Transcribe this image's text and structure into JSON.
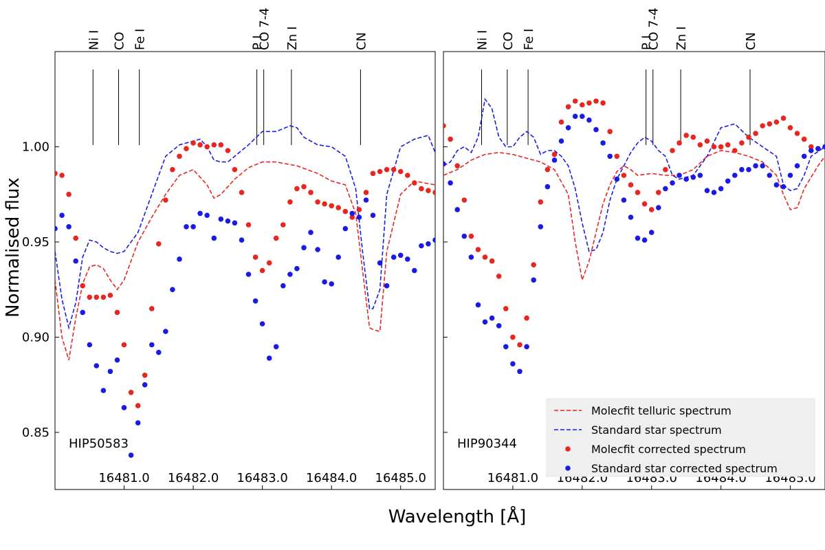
{
  "figure": {
    "xlabel": "Wavelength [Å]",
    "ylabel": "Normalised flux"
  },
  "legend": {
    "placement": "lower-right of right panel",
    "entries": [
      {
        "label": "Molecfit telluric spectrum",
        "style": "dashed-line",
        "color": "#e8251f"
      },
      {
        "label": "Standard star spectrum",
        "style": "dashed-line",
        "color": "#1a1ae6"
      },
      {
        "label": "Molecfit corrected spectrum",
        "style": "dot",
        "color": "#e8251f"
      },
      {
        "label": "Standard star corrected spectrum",
        "style": "dot",
        "color": "#1a1ae6"
      }
    ]
  },
  "colors": {
    "red": "#e8251f",
    "blue": "#1a1ae6",
    "legend_bg": "#efefef"
  },
  "chart_data": [
    {
      "type": "line",
      "label": "HIP50583",
      "xlim": [
        16480.0,
        16485.5
      ],
      "ylim": [
        0.82,
        1.05
      ],
      "xticks": [
        16481.0,
        16482.0,
        16483.0,
        16484.0,
        16485.0
      ],
      "xtick_labels": [
        "16481.0",
        "16482.0",
        "16483.0",
        "16484.0",
        "16485.0"
      ],
      "yticks": [
        0.85,
        0.9,
        0.95,
        1.0
      ],
      "ytick_labels": [
        "0.85",
        "0.90",
        "0.95",
        "1.00"
      ],
      "line_ids": [
        {
          "label": "Ni I",
          "x": 16480.55
        },
        {
          "label": "CO",
          "x": 16480.92
        },
        {
          "label": "Fe I",
          "x": 16481.22
        },
        {
          "label": "P I",
          "x": 16482.92
        },
        {
          "label": "CO 7-4",
          "x": 16483.02
        },
        {
          "label": "Zn I",
          "x": 16483.42
        },
        {
          "label": "CN",
          "x": 16484.42
        }
      ],
      "series": [
        {
          "name": "Molecfit telluric spectrum",
          "kind": "line",
          "x": [
            16480.0,
            16480.1,
            16480.2,
            16480.3,
            16480.4,
            16480.5,
            16480.6,
            16480.7,
            16480.8,
            16480.9,
            16481.0,
            16481.2,
            16481.4,
            16481.6,
            16481.8,
            16482.0,
            16482.2,
            16482.3,
            16482.4,
            16482.6,
            16482.8,
            16483.0,
            16483.2,
            16483.5,
            16483.8,
            16484.0,
            16484.2,
            16484.35,
            16484.45,
            16484.55,
            16484.6,
            16484.7,
            16484.8,
            16485.0,
            16485.2,
            16485.5
          ],
          "y": [
            0.93,
            0.9,
            0.888,
            0.91,
            0.928,
            0.937,
            0.938,
            0.936,
            0.93,
            0.925,
            0.93,
            0.95,
            0.963,
            0.975,
            0.985,
            0.988,
            0.98,
            0.973,
            0.975,
            0.983,
            0.989,
            0.992,
            0.992,
            0.99,
            0.986,
            0.982,
            0.98,
            0.965,
            0.935,
            0.905,
            0.904,
            0.903,
            0.945,
            0.975,
            0.982,
            0.98
          ]
        },
        {
          "name": "Standard star spectrum",
          "kind": "line",
          "x": [
            16480.0,
            16480.1,
            16480.2,
            16480.3,
            16480.4,
            16480.5,
            16480.6,
            16480.7,
            16480.8,
            16480.9,
            16481.0,
            16481.2,
            16481.4,
            16481.6,
            16481.8,
            16482.0,
            16482.1,
            16482.2,
            16482.3,
            16482.4,
            16482.5,
            16482.6,
            16482.8,
            16483.0,
            16483.2,
            16483.4,
            16483.5,
            16483.6,
            16483.8,
            16484.0,
            16484.2,
            16484.35,
            16484.45,
            16484.55,
            16484.6,
            16484.7,
            16484.8,
            16485.0,
            16485.2,
            16485.4,
            16485.5
          ],
          "y": [
            0.945,
            0.92,
            0.905,
            0.918,
            0.942,
            0.951,
            0.95,
            0.947,
            0.945,
            0.944,
            0.945,
            0.955,
            0.975,
            0.995,
            1.001,
            1.003,
            1.004,
            1.0,
            0.993,
            0.992,
            0.992,
            0.995,
            1.001,
            1.008,
            1.008,
            1.011,
            1.01,
            1.005,
            1.001,
            1.0,
            0.995,
            0.978,
            0.945,
            0.915,
            0.915,
            0.925,
            0.975,
            1.0,
            1.004,
            1.006,
            0.997
          ]
        },
        {
          "name": "Molecfit corrected spectrum",
          "kind": "scatter",
          "x": [
            16480.0,
            16480.1,
            16480.2,
            16480.3,
            16480.4,
            16480.5,
            16480.6,
            16480.7,
            16480.8,
            16480.9,
            16481.0,
            16481.1,
            16481.2,
            16481.3,
            16481.4,
            16481.5,
            16481.6,
            16481.7,
            16481.8,
            16481.9,
            16482.0,
            16482.1,
            16482.2,
            16482.3,
            16482.4,
            16482.5,
            16482.6,
            16482.7,
            16482.8,
            16482.9,
            16483.0,
            16483.1,
            16483.2,
            16483.3,
            16483.4,
            16483.5,
            16483.6,
            16483.7,
            16483.8,
            16483.9,
            16484.0,
            16484.1,
            16484.2,
            16484.3,
            16484.4,
            16484.5,
            16484.6,
            16484.7,
            16484.8,
            16484.9,
            16485.0,
            16485.1,
            16485.2,
            16485.3,
            16485.4,
            16485.5
          ],
          "y": [
            0.986,
            0.985,
            0.975,
            0.952,
            0.927,
            0.921,
            0.921,
            0.921,
            0.922,
            0.913,
            0.896,
            0.871,
            0.864,
            0.88,
            0.915,
            0.949,
            0.972,
            0.988,
            0.995,
            0.999,
            1.002,
            1.001,
            1.0,
            1.001,
            1.001,
            0.998,
            0.988,
            0.976,
            0.959,
            0.942,
            0.935,
            0.939,
            0.952,
            0.959,
            0.971,
            0.978,
            0.979,
            0.976,
            0.971,
            0.97,
            0.969,
            0.968,
            0.966,
            0.963,
            0.967,
            0.976,
            0.986,
            0.987,
            0.988,
            0.988,
            0.987,
            0.985,
            0.981,
            0.978,
            0.977,
            0.976
          ]
        },
        {
          "name": "Standard star corrected spectrum",
          "kind": "scatter",
          "x": [
            16480.0,
            16480.1,
            16480.2,
            16480.3,
            16480.4,
            16480.5,
            16480.6,
            16480.7,
            16480.8,
            16480.9,
            16481.0,
            16481.1,
            16481.2,
            16481.3,
            16481.4,
            16481.5,
            16481.6,
            16481.7,
            16481.8,
            16481.9,
            16482.0,
            16482.1,
            16482.2,
            16482.3,
            16482.4,
            16482.5,
            16482.6,
            16482.7,
            16482.8,
            16482.9,
            16483.0,
            16483.1,
            16483.2,
            16483.3,
            16483.4,
            16483.5,
            16483.6,
            16483.7,
            16483.8,
            16483.9,
            16484.0,
            16484.1,
            16484.2,
            16484.3,
            16484.4,
            16484.5,
            16484.6,
            16484.7,
            16484.8,
            16484.9,
            16485.0,
            16485.1,
            16485.2,
            16485.3,
            16485.4,
            16485.5
          ],
          "y": [
            0.957,
            0.964,
            0.958,
            0.94,
            0.913,
            0.896,
            0.885,
            0.872,
            0.882,
            0.888,
            0.863,
            0.838,
            0.855,
            0.875,
            0.896,
            0.892,
            0.903,
            0.925,
            0.941,
            0.958,
            0.958,
            0.965,
            0.964,
            0.952,
            0.962,
            0.961,
            0.96,
            0.951,
            0.933,
            0.919,
            0.907,
            0.889,
            0.895,
            0.927,
            0.933,
            0.936,
            0.947,
            0.955,
            0.946,
            0.929,
            0.928,
            0.942,
            0.957,
            0.965,
            0.963,
            0.972,
            0.964,
            0.939,
            0.927,
            0.942,
            0.943,
            0.941,
            0.935,
            0.948,
            0.949,
            0.951
          ]
        }
      ]
    },
    {
      "type": "line",
      "label": "HIP90344",
      "xlim": [
        16480.0,
        16485.5
      ],
      "ylim": [
        0.82,
        1.05
      ],
      "xticks": [
        16481.0,
        16482.0,
        16483.0,
        16484.0,
        16485.0
      ],
      "xtick_labels": [
        "16481.0",
        "16482.0",
        "16483.0",
        "16484.0",
        "16485.0"
      ],
      "yticks": [
        0.85,
        0.9,
        0.95,
        1.0
      ],
      "line_ids": [
        {
          "label": "Ni I",
          "x": 16480.55
        },
        {
          "label": "CO",
          "x": 16480.92
        },
        {
          "label": "Fe I",
          "x": 16481.22
        },
        {
          "label": "P I",
          "x": 16482.92
        },
        {
          "label": "CO 7-4",
          "x": 16483.02
        },
        {
          "label": "Zn I",
          "x": 16483.42
        },
        {
          "label": "CN",
          "x": 16484.42
        }
      ],
      "series": [
        {
          "name": "Molecfit telluric spectrum",
          "kind": "line",
          "x": [
            16480.0,
            16480.2,
            16480.4,
            16480.6,
            16480.8,
            16481.0,
            16481.2,
            16481.4,
            16481.6,
            16481.8,
            16481.9,
            16482.0,
            16482.1,
            16482.2,
            16482.3,
            16482.4,
            16482.5,
            16482.6,
            16482.7,
            16482.8,
            16483.0,
            16483.2,
            16483.4,
            16483.6,
            16483.8,
            16484.0,
            16484.2,
            16484.4,
            16484.6,
            16484.8,
            16484.9,
            16485.0,
            16485.1,
            16485.2,
            16485.4,
            16485.5
          ],
          "y": [
            0.985,
            0.988,
            0.993,
            0.996,
            0.997,
            0.996,
            0.994,
            0.992,
            0.988,
            0.975,
            0.95,
            0.93,
            0.94,
            0.955,
            0.97,
            0.98,
            0.987,
            0.99,
            0.988,
            0.985,
            0.986,
            0.985,
            0.985,
            0.988,
            0.995,
            0.998,
            0.997,
            0.995,
            0.992,
            0.985,
            0.975,
            0.967,
            0.968,
            0.978,
            0.99,
            0.995
          ]
        },
        {
          "name": "Standard star spectrum",
          "kind": "line",
          "x": [
            16480.0,
            16480.1,
            16480.2,
            16480.3,
            16480.4,
            16480.5,
            16480.6,
            16480.7,
            16480.8,
            16480.9,
            16481.0,
            16481.1,
            16481.2,
            16481.3,
            16481.4,
            16481.5,
            16481.6,
            16481.7,
            16481.8,
            16481.9,
            16482.0,
            16482.1,
            16482.2,
            16482.3,
            16482.4,
            16482.5,
            16482.6,
            16482.7,
            16482.8,
            16482.9,
            16483.0,
            16483.1,
            16483.2,
            16483.3,
            16483.4,
            16483.6,
            16483.8,
            16484.0,
            16484.2,
            16484.4,
            16484.6,
            16484.8,
            16484.9,
            16485.0,
            16485.1,
            16485.2,
            16485.3,
            16485.5
          ],
          "y": [
            0.99,
            0.992,
            0.998,
            1.0,
            0.997,
            1.005,
            1.025,
            1.02,
            1.005,
            1.0,
            1.0,
            1.005,
            1.008,
            1.005,
            0.996,
            0.998,
            0.998,
            0.995,
            0.99,
            0.978,
            0.96,
            0.945,
            0.946,
            0.955,
            0.972,
            0.983,
            0.99,
            0.997,
            1.002,
            1.005,
            1.003,
            0.998,
            0.995,
            0.985,
            0.983,
            0.985,
            0.995,
            1.01,
            1.012,
            1.005,
            1.0,
            0.995,
            0.98,
            0.977,
            0.978,
            0.985,
            0.995,
            1.0
          ]
        },
        {
          "name": "Molecfit corrected spectrum",
          "kind": "scatter",
          "x": [
            16480.0,
            16480.1,
            16480.2,
            16480.3,
            16480.4,
            16480.5,
            16480.6,
            16480.7,
            16480.8,
            16480.9,
            16481.0,
            16481.1,
            16481.2,
            16481.3,
            16481.4,
            16481.5,
            16481.6,
            16481.7,
            16481.8,
            16481.9,
            16482.0,
            16482.1,
            16482.2,
            16482.3,
            16482.4,
            16482.5,
            16482.6,
            16482.7,
            16482.8,
            16482.9,
            16483.0,
            16483.1,
            16483.2,
            16483.3,
            16483.4,
            16483.5,
            16483.6,
            16483.7,
            16483.8,
            16483.9,
            16484.0,
            16484.1,
            16484.2,
            16484.3,
            16484.4,
            16484.5,
            16484.6,
            16484.7,
            16484.8,
            16484.9,
            16485.0,
            16485.1,
            16485.2,
            16485.3,
            16485.4,
            16485.5
          ],
          "y": [
            1.011,
            1.004,
            0.99,
            0.972,
            0.953,
            0.946,
            0.942,
            0.94,
            0.932,
            0.915,
            0.9,
            0.896,
            0.91,
            0.938,
            0.971,
            0.988,
            0.996,
            1.013,
            1.021,
            1.024,
            1.022,
            1.023,
            1.024,
            1.023,
            1.008,
            0.995,
            0.985,
            0.98,
            0.976,
            0.97,
            0.967,
            0.976,
            0.988,
            0.998,
            1.002,
            1.006,
            1.005,
            1.001,
            1.003,
            1.0,
            1.0,
            1.001,
            0.998,
            1.002,
            1.005,
            1.007,
            1.011,
            1.012,
            1.013,
            1.015,
            1.01,
            1.007,
            1.004,
            1.0,
            0.999,
            1.0
          ]
        },
        {
          "name": "Standard star corrected spectrum",
          "kind": "scatter",
          "x": [
            16480.0,
            16480.1,
            16480.2,
            16480.3,
            16480.4,
            16480.5,
            16480.6,
            16480.7,
            16480.8,
            16480.9,
            16481.0,
            16481.1,
            16481.2,
            16481.3,
            16481.4,
            16481.5,
            16481.6,
            16481.7,
            16481.8,
            16481.9,
            16482.0,
            16482.1,
            16482.2,
            16482.3,
            16482.4,
            16482.5,
            16482.6,
            16482.7,
            16482.8,
            16482.9,
            16483.0,
            16483.1,
            16483.2,
            16483.3,
            16483.4,
            16483.5,
            16483.6,
            16483.7,
            16483.8,
            16483.9,
            16484.0,
            16484.1,
            16484.2,
            16484.3,
            16484.4,
            16484.5,
            16484.6,
            16484.7,
            16484.8,
            16484.9,
            16485.0,
            16485.1,
            16485.2,
            16485.3,
            16485.4,
            16485.5
          ],
          "y": [
            0.991,
            0.981,
            0.967,
            0.953,
            0.942,
            0.917,
            0.908,
            0.91,
            0.906,
            0.895,
            0.886,
            0.882,
            0.895,
            0.93,
            0.958,
            0.979,
            0.993,
            1.003,
            1.01,
            1.016,
            1.016,
            1.014,
            1.009,
            1.002,
            0.995,
            0.983,
            0.972,
            0.963,
            0.952,
            0.951,
            0.955,
            0.968,
            0.978,
            0.981,
            0.985,
            0.983,
            0.984,
            0.985,
            0.977,
            0.976,
            0.978,
            0.982,
            0.985,
            0.988,
            0.988,
            0.99,
            0.99,
            0.985,
            0.98,
            0.979,
            0.985,
            0.99,
            0.995,
            0.998,
            0.999,
            1.0
          ]
        }
      ]
    }
  ]
}
